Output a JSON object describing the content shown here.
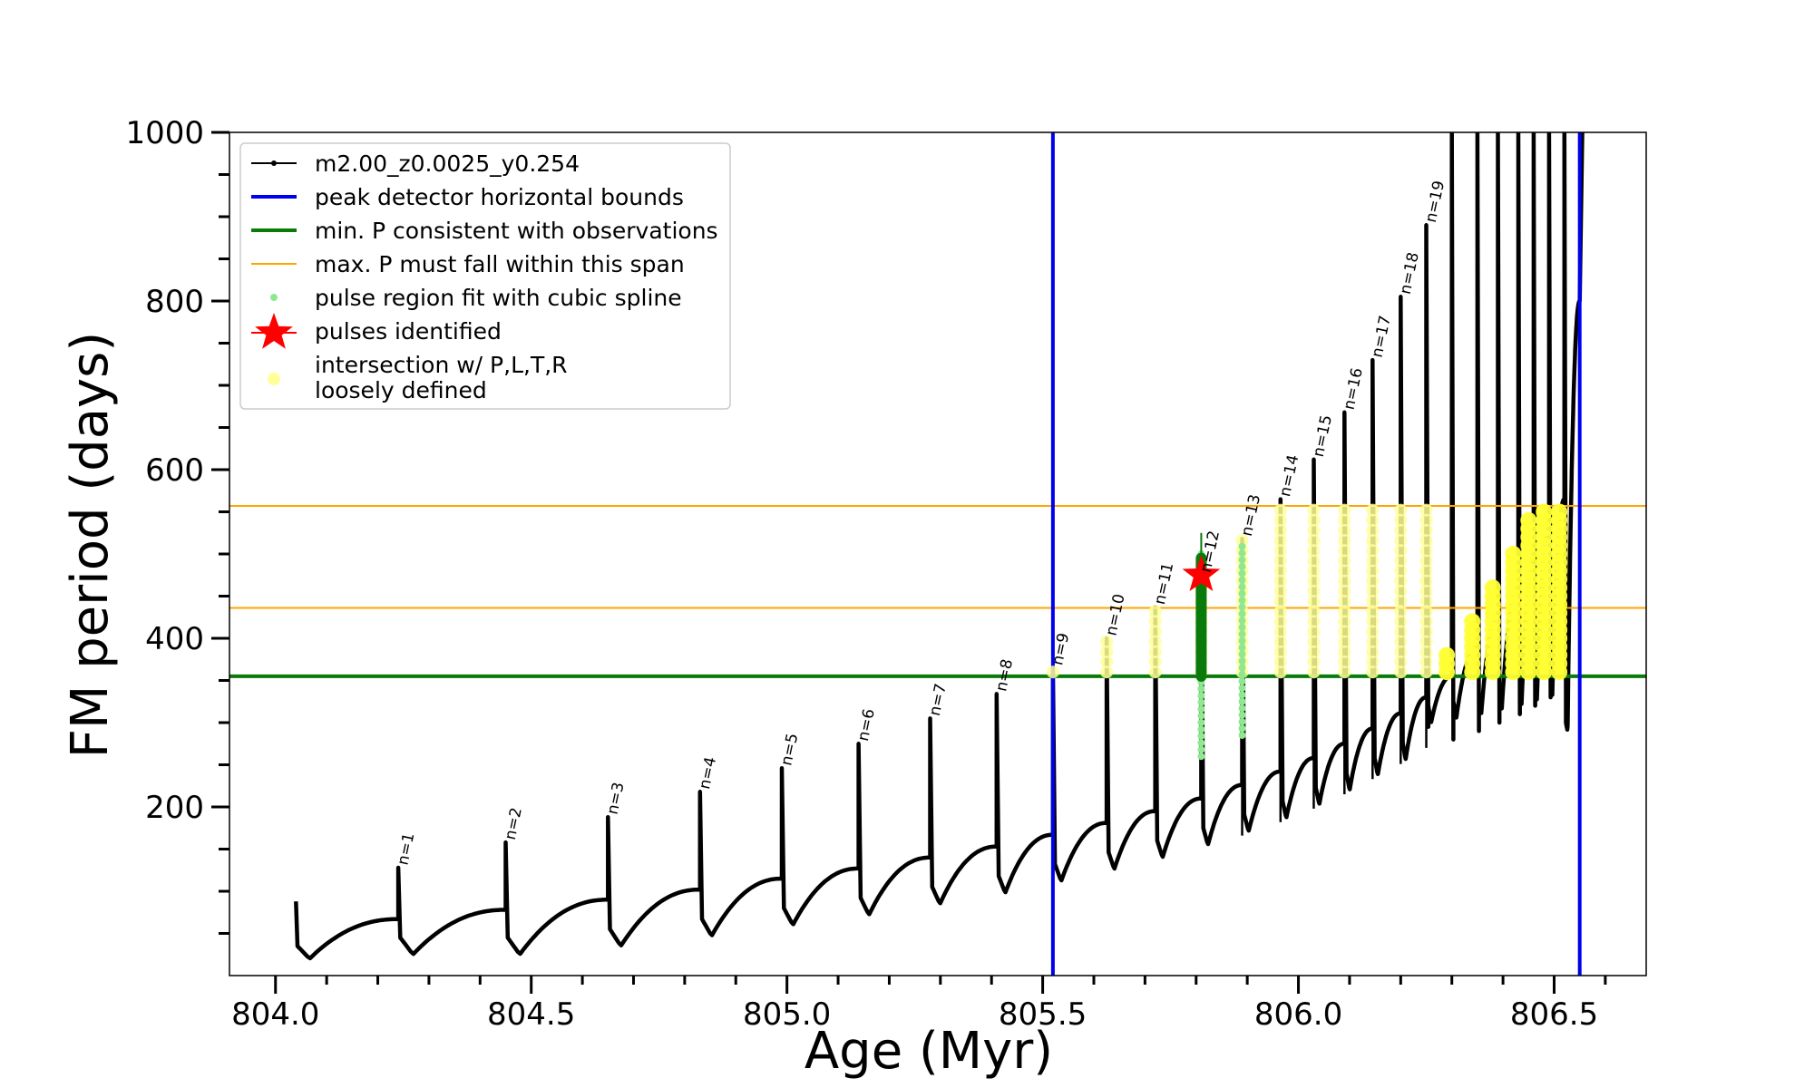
{
  "chart_data": {
    "type": "line",
    "xlabel": "Age (Myr)",
    "ylabel": "FM period (days)",
    "xlim": [
      803.91,
      806.68
    ],
    "ylim": [
      0,
      1000
    ],
    "x_ticks": [
      804.0,
      804.5,
      805.0,
      805.5,
      806.0,
      806.5
    ],
    "x_tick_labels": [
      "804.0",
      "804.5",
      "805.0",
      "805.5",
      "806.0",
      "806.5"
    ],
    "y_ticks": [
      200,
      400,
      600,
      800,
      1000
    ],
    "y_tick_labels": [
      "200",
      "400",
      "600",
      "800",
      "1000"
    ],
    "legend_placement": "upper-left",
    "legend": [
      {
        "label": "m2.00_z0.0025_y0.254",
        "style": "line-dot",
        "color": "#000000"
      },
      {
        "label": "peak detector horizontal bounds",
        "style": "line",
        "color": "#0000ee"
      },
      {
        "label": "min. P consistent with observations",
        "style": "line",
        "color": "#0a7a0a"
      },
      {
        "label": "max. P must fall within this span",
        "style": "line",
        "color": "#ffa500"
      },
      {
        "label": "pulse region fit with cubic spline",
        "style": "dot",
        "color": "#8fe88f"
      },
      {
        "label": "pulses identified",
        "style": "star",
        "color": "#ff0000"
      },
      {
        "label": "intersection w/ P,L,T,R\nloosely defined",
        "style": "dot",
        "color": "#ffff99"
      }
    ],
    "vertical_bounds": [
      805.52,
      806.55
    ],
    "min_period_line": 355,
    "max_period_span": [
      436,
      557
    ],
    "pulses": [
      {
        "label": "n=1",
        "age": 804.24,
        "base": 67,
        "peak": 128
      },
      {
        "label": "n=2",
        "age": 804.45,
        "base": 78,
        "peak": 158
      },
      {
        "label": "n=3",
        "age": 804.65,
        "base": 90,
        "peak": 188
      },
      {
        "label": "n=4",
        "age": 804.83,
        "base": 102,
        "peak": 218
      },
      {
        "label": "n=5",
        "age": 804.99,
        "base": 115,
        "peak": 246
      },
      {
        "label": "n=6",
        "age": 805.14,
        "base": 127,
        "peak": 275
      },
      {
        "label": "n=7",
        "age": 805.28,
        "base": 140,
        "peak": 305
      },
      {
        "label": "n=8",
        "age": 805.41,
        "base": 153,
        "peak": 334
      },
      {
        "label": "n=9",
        "age": 805.52,
        "base": 167,
        "peak": 365
      },
      {
        "label": "n=10",
        "age": 805.625,
        "base": 181,
        "peak": 400
      },
      {
        "label": "n=11",
        "age": 805.72,
        "base": 195,
        "peak": 437
      },
      {
        "label": "n=12",
        "age": 805.81,
        "base": 210,
        "peak": 475
      },
      {
        "label": "n=13",
        "age": 805.89,
        "base": 226,
        "peak": 518
      },
      {
        "label": "n=14",
        "age": 805.965,
        "base": 242,
        "peak": 565
      },
      {
        "label": "n=15",
        "age": 806.03,
        "base": 258,
        "peak": 612
      },
      {
        "label": "n=16",
        "age": 806.09,
        "base": 275,
        "peak": 668
      },
      {
        "label": "n=17",
        "age": 806.145,
        "base": 293,
        "peak": 730
      },
      {
        "label": "n=18",
        "age": 806.2,
        "base": 311,
        "peak": 805
      },
      {
        "label": "n=19",
        "age": 806.25,
        "base": 330,
        "peak": 890
      }
    ],
    "late_pulses": [
      806.3,
      806.35,
      806.39,
      806.43,
      806.46,
      806.49,
      806.52
    ],
    "pulse_identified": {
      "age": 805.81,
      "period": 475
    }
  }
}
